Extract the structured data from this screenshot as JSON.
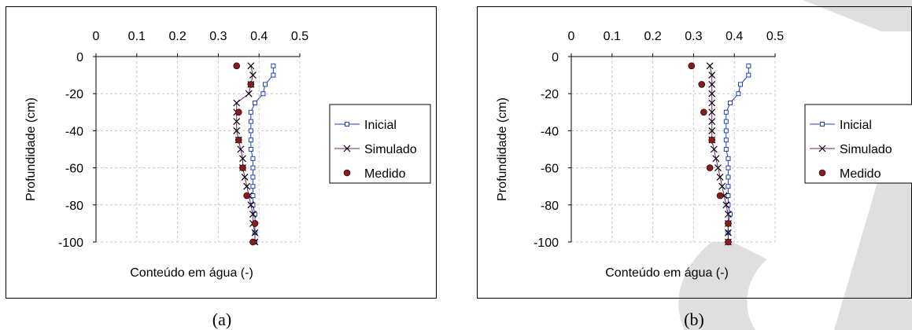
{
  "colors": {
    "inicial": "#1f3fbf",
    "simulado": "#7a1f6e",
    "medido": "#8b1a1a",
    "grid": "#c8c8c8",
    "watermark": "#dcdcdc"
  },
  "chart_data": [
    {
      "type": "line",
      "caption": "(a)",
      "xlabel": "Conteúdo em água (-)",
      "ylabel": "Profundidade (cm)",
      "xlim": [
        0,
        0.5
      ],
      "ylim": [
        -100,
        0
      ],
      "xticks": [
        "0",
        "0.1",
        "0.2",
        "0.3",
        "0.4",
        "0.5"
      ],
      "yticks": [
        "0",
        "-20",
        "-40",
        "-60",
        "-80",
        "-100"
      ],
      "grid": true,
      "legend_position": "right",
      "series": [
        {
          "name": "Inicial",
          "marker": "square",
          "points": [
            [
              0.435,
              -5
            ],
            [
              0.435,
              -10
            ],
            [
              0.415,
              -15
            ],
            [
              0.41,
              -20
            ],
            [
              0.39,
              -25
            ],
            [
              0.38,
              -30
            ],
            [
              0.38,
              -35
            ],
            [
              0.38,
              -40
            ],
            [
              0.38,
              -45
            ],
            [
              0.38,
              -50
            ],
            [
              0.385,
              -55
            ],
            [
              0.385,
              -60
            ],
            [
              0.385,
              -65
            ],
            [
              0.385,
              -70
            ],
            [
              0.385,
              -75
            ],
            [
              0.385,
              -80
            ],
            [
              0.39,
              -85
            ],
            [
              0.39,
              -90
            ],
            [
              0.39,
              -95
            ],
            [
              0.39,
              -100
            ]
          ]
        },
        {
          "name": "Simulado",
          "marker": "x",
          "points": [
            [
              0.38,
              -5
            ],
            [
              0.385,
              -10
            ],
            [
              0.38,
              -15
            ],
            [
              0.375,
              -20
            ],
            [
              0.345,
              -25
            ],
            [
              0.345,
              -30
            ],
            [
              0.345,
              -35
            ],
            [
              0.345,
              -40
            ],
            [
              0.35,
              -45
            ],
            [
              0.355,
              -50
            ],
            [
              0.36,
              -55
            ],
            [
              0.36,
              -60
            ],
            [
              0.365,
              -65
            ],
            [
              0.37,
              -70
            ],
            [
              0.375,
              -75
            ],
            [
              0.38,
              -80
            ],
            [
              0.385,
              -85
            ],
            [
              0.385,
              -90
            ],
            [
              0.39,
              -95
            ],
            [
              0.39,
              -100
            ]
          ]
        },
        {
          "name": "Medido",
          "marker": "circle",
          "points": [
            [
              0.345,
              -5
            ],
            [
              0.38,
              -15
            ],
            [
              0.35,
              -30
            ],
            [
              0.35,
              -45
            ],
            [
              0.36,
              -60
            ],
            [
              0.37,
              -75
            ],
            [
              0.39,
              -90
            ],
            [
              0.385,
              -100
            ]
          ]
        }
      ]
    },
    {
      "type": "line",
      "caption": "(b)",
      "xlabel": "Conteúdo em água (-)",
      "ylabel": "Profundidade (cm)",
      "xlim": [
        0,
        0.5
      ],
      "ylim": [
        -100,
        0
      ],
      "xticks": [
        "0",
        "0.1",
        "0.2",
        "0.3",
        "0.4",
        "0.5"
      ],
      "yticks": [
        "0",
        "-20",
        "-40",
        "-60",
        "-80",
        "-100"
      ],
      "grid": true,
      "legend_position": "right",
      "series": [
        {
          "name": "Inicial",
          "marker": "square",
          "points": [
            [
              0.435,
              -5
            ],
            [
              0.435,
              -10
            ],
            [
              0.415,
              -15
            ],
            [
              0.41,
              -20
            ],
            [
              0.39,
              -25
            ],
            [
              0.38,
              -30
            ],
            [
              0.38,
              -35
            ],
            [
              0.38,
              -40
            ],
            [
              0.38,
              -45
            ],
            [
              0.38,
              -50
            ],
            [
              0.385,
              -55
            ],
            [
              0.385,
              -60
            ],
            [
              0.385,
              -65
            ],
            [
              0.385,
              -70
            ],
            [
              0.385,
              -75
            ],
            [
              0.385,
              -80
            ],
            [
              0.39,
              -85
            ],
            [
              0.385,
              -90
            ],
            [
              0.385,
              -95
            ],
            [
              0.385,
              -100
            ]
          ]
        },
        {
          "name": "Simulado",
          "marker": "x",
          "points": [
            [
              0.34,
              -5
            ],
            [
              0.345,
              -10
            ],
            [
              0.345,
              -15
            ],
            [
              0.345,
              -20
            ],
            [
              0.345,
              -25
            ],
            [
              0.345,
              -30
            ],
            [
              0.345,
              -35
            ],
            [
              0.345,
              -40
            ],
            [
              0.345,
              -45
            ],
            [
              0.35,
              -50
            ],
            [
              0.355,
              -55
            ],
            [
              0.36,
              -60
            ],
            [
              0.365,
              -65
            ],
            [
              0.37,
              -70
            ],
            [
              0.375,
              -75
            ],
            [
              0.38,
              -80
            ],
            [
              0.385,
              -85
            ],
            [
              0.385,
              -90
            ],
            [
              0.385,
              -95
            ],
            [
              0.385,
              -100
            ]
          ]
        },
        {
          "name": "Medido",
          "marker": "circle",
          "points": [
            [
              0.295,
              -5
            ],
            [
              0.32,
              -15
            ],
            [
              0.325,
              -30
            ],
            [
              0.345,
              -45
            ],
            [
              0.34,
              -60
            ],
            [
              0.365,
              -75
            ],
            [
              0.385,
              -90
            ],
            [
              0.385,
              -100
            ]
          ]
        }
      ]
    }
  ]
}
